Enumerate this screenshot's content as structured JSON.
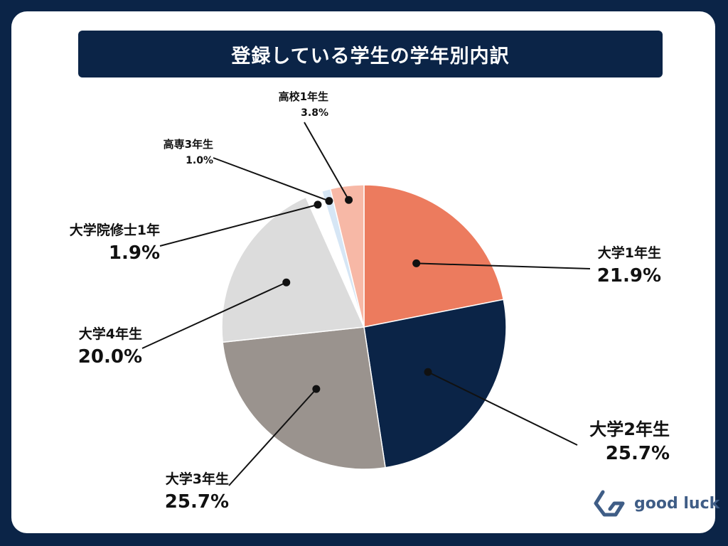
{
  "title": "登録している学生の学年別内訳",
  "logo": {
    "text": "good luck",
    "icon": "good-luck-logo-icon",
    "color": "#3f5d86"
  },
  "colors": {
    "background": "#0b2447",
    "card": "#ffffff",
    "title_bar": "#0b2447"
  },
  "chart_data": {
    "type": "pie",
    "title": "登録している学生の学年別内訳",
    "slices": [
      {
        "label": "大学1年生",
        "value": 21.9,
        "display": "21.9%",
        "color": "#ec7b5e"
      },
      {
        "label": "大学2年生",
        "value": 25.7,
        "display": "25.7%",
        "color": "#0b2447"
      },
      {
        "label": "大学3年生",
        "value": 25.7,
        "display": "25.7%",
        "color": "#9a938e"
      },
      {
        "label": "大学4年生",
        "value": 20.0,
        "display": "20.0%",
        "color": "#dcdcdc"
      },
      {
        "label": "大学院修士1年",
        "value": 1.9,
        "display": "1.9%",
        "color": "#ffffff"
      },
      {
        "label": "高専3年生",
        "value": 1.0,
        "display": "1.0%",
        "color": "#d6e6f5"
      },
      {
        "label": "高校1年生",
        "value": 3.8,
        "display": "3.8%",
        "color": "#f7b8a6"
      }
    ]
  }
}
